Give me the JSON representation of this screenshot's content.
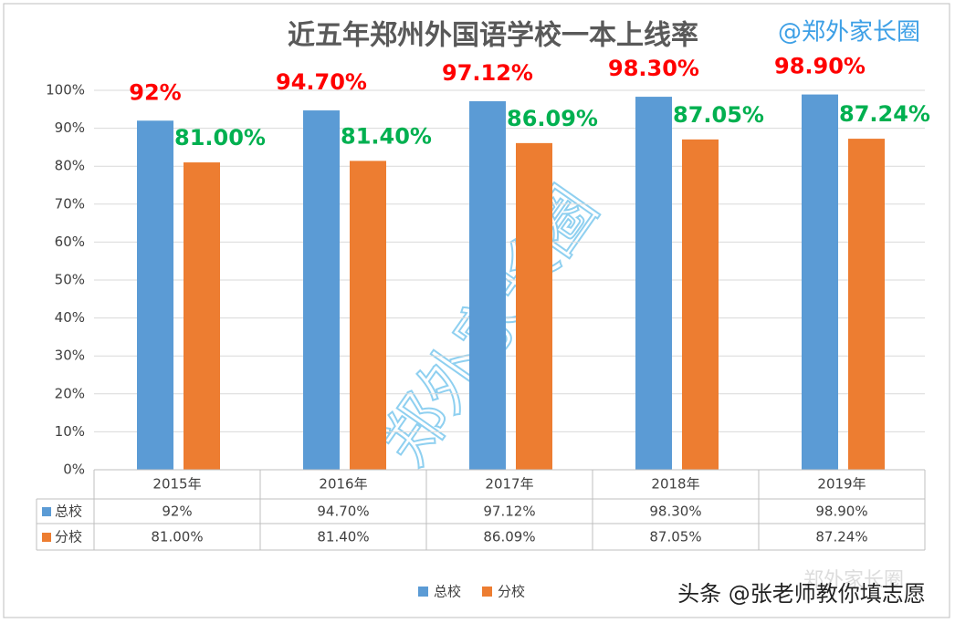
{
  "chart_data": {
    "type": "bar",
    "title": "近五年郑州外国语学校一本上线率",
    "categories": [
      "2015年",
      "2016年",
      "2017年",
      "2018年",
      "2019年"
    ],
    "series": [
      {
        "name": "总校",
        "color": "#5b9bd5",
        "label_color": "#ff0000",
        "values": [
          92,
          94.7,
          97.12,
          98.3,
          98.9
        ],
        "value_labels": [
          "92%",
          "94.70%",
          "97.12%",
          "98.30%",
          "98.90%"
        ]
      },
      {
        "name": "分校",
        "color": "#ed7d31",
        "label_color": "#00b050",
        "values": [
          81,
          81.4,
          86.09,
          87.05,
          87.24
        ],
        "value_labels": [
          "81.00%",
          "81.40%",
          "86.09%",
          "87.05%",
          "87.24%"
        ]
      }
    ],
    "ylim": [
      0,
      100
    ],
    "yticks": [
      {
        "value": 0,
        "label": "0%"
      },
      {
        "value": 10,
        "label": "10%"
      },
      {
        "value": 20,
        "label": "20%"
      },
      {
        "value": 30,
        "label": "30%"
      },
      {
        "value": 40,
        "label": "40%"
      },
      {
        "value": 50,
        "label": "50%"
      },
      {
        "value": 60,
        "label": "60%"
      },
      {
        "value": 70,
        "label": "70%"
      },
      {
        "value": 80,
        "label": "80%"
      },
      {
        "value": 90,
        "label": "90%"
      },
      {
        "value": 100,
        "label": "100%"
      }
    ],
    "grid": true,
    "data_table": true,
    "annotations": {
      "watermark_top": "@郑外家长圈",
      "watermark_center": "郑外家长圈",
      "footer_source": "头条 @张老师教你填志愿",
      "footer_brand": "郑外家长圈"
    }
  }
}
